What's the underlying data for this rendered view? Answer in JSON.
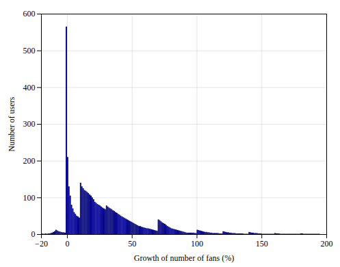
{
  "chart_data": {
    "type": "histogram",
    "xlabel": "Growth of number of fans (%)",
    "ylabel": "Number of users",
    "color": "#00008B",
    "xlim": [
      -20,
      200
    ],
    "ylim": [
      0,
      600
    ],
    "xticks": [
      -20,
      0,
      50,
      100,
      150,
      200
    ],
    "yticks": [
      0,
      100,
      200,
      300,
      400,
      500,
      600
    ],
    "grid": true,
    "bins": [
      -20,
      -19,
      -18,
      -17,
      -16,
      -15,
      -14,
      -13,
      -12,
      -11,
      -10,
      -9,
      -8,
      -7,
      -6,
      -5,
      -4,
      -3,
      -2,
      -1,
      0,
      1,
      2,
      3,
      4,
      5,
      6,
      7,
      8,
      9,
      10,
      11,
      12,
      13,
      14,
      15,
      16,
      17,
      18,
      19,
      20,
      21,
      22,
      23,
      24,
      25,
      26,
      27,
      28,
      29,
      30,
      31,
      32,
      33,
      34,
      35,
      36,
      37,
      38,
      39,
      40,
      41,
      42,
      43,
      44,
      45,
      46,
      47,
      48,
      49,
      50,
      51,
      52,
      53,
      54,
      55,
      56,
      57,
      58,
      59,
      60,
      61,
      62,
      63,
      64,
      65,
      66,
      67,
      68,
      69,
      70,
      71,
      72,
      73,
      74,
      75,
      76,
      77,
      78,
      79,
      80,
      81,
      82,
      83,
      84,
      85,
      86,
      87,
      88,
      89,
      90,
      91,
      92,
      93,
      94,
      95,
      96,
      97,
      98,
      99,
      100,
      101,
      102,
      103,
      104,
      105,
      106,
      107,
      108,
      109,
      110,
      111,
      112,
      113,
      114,
      115,
      116,
      117,
      118,
      119,
      120,
      121,
      122,
      123,
      124,
      125,
      126,
      127,
      128,
      129,
      130,
      131,
      132,
      133,
      134,
      135,
      136,
      137,
      138,
      139,
      140,
      141,
      142,
      143,
      144,
      145,
      146,
      147,
      148,
      149,
      150,
      151,
      152,
      153,
      154,
      155,
      156,
      157,
      158,
      159,
      160,
      161,
      162,
      163,
      164,
      165,
      166,
      167,
      168,
      169,
      170,
      171,
      172,
      173,
      174,
      175,
      176,
      177,
      178,
      179,
      180,
      181,
      182,
      183,
      184,
      185,
      186,
      187,
      188,
      189,
      190,
      191,
      192,
      193,
      194,
      195,
      196,
      197,
      198,
      199,
      200
    ],
    "values": [
      2,
      1,
      1,
      2,
      1,
      2,
      2,
      3,
      4,
      6,
      8,
      12,
      10,
      8,
      7,
      6,
      5,
      5,
      4,
      565,
      210,
      130,
      105,
      80,
      70,
      60,
      55,
      50,
      48,
      45,
      140,
      130,
      125,
      120,
      118,
      115,
      112,
      108,
      105,
      100,
      95,
      88,
      85,
      82,
      80,
      78,
      75,
      72,
      70,
      68,
      78,
      75,
      72,
      70,
      68,
      65,
      63,
      60,
      58,
      55,
      53,
      50,
      48,
      46,
      44,
      42,
      40,
      38,
      36,
      34,
      32,
      30,
      28,
      26,
      24,
      22,
      22,
      20,
      19,
      18,
      17,
      16,
      16,
      15,
      14,
      13,
      12,
      11,
      10,
      9,
      40,
      38,
      35,
      32,
      30,
      28,
      25,
      22,
      20,
      18,
      16,
      15,
      14,
      13,
      12,
      11,
      10,
      9,
      8,
      7,
      6,
      5,
      4,
      4,
      4,
      4,
      4,
      4,
      3,
      3,
      12,
      11,
      10,
      9,
      8,
      7,
      6,
      6,
      5,
      5,
      4,
      4,
      3,
      3,
      3,
      3,
      3,
      2,
      2,
      2,
      8,
      7,
      6,
      5,
      5,
      4,
      4,
      3,
      3,
      3,
      2,
      2,
      2,
      2,
      2,
      2,
      1,
      1,
      1,
      1,
      6,
      5,
      4,
      4,
      3,
      3,
      3,
      2,
      2,
      2,
      1,
      1,
      1,
      1,
      1,
      1,
      1,
      1,
      1,
      1,
      3,
      2,
      2,
      2,
      1,
      1,
      1,
      1,
      1,
      1,
      1,
      1,
      1,
      1,
      1,
      1,
      1,
      1,
      1,
      1,
      2,
      2,
      1,
      1,
      1,
      1,
      1,
      1,
      1,
      1,
      1,
      1,
      1,
      1,
      1,
      0,
      0,
      0,
      0,
      0
    ]
  }
}
